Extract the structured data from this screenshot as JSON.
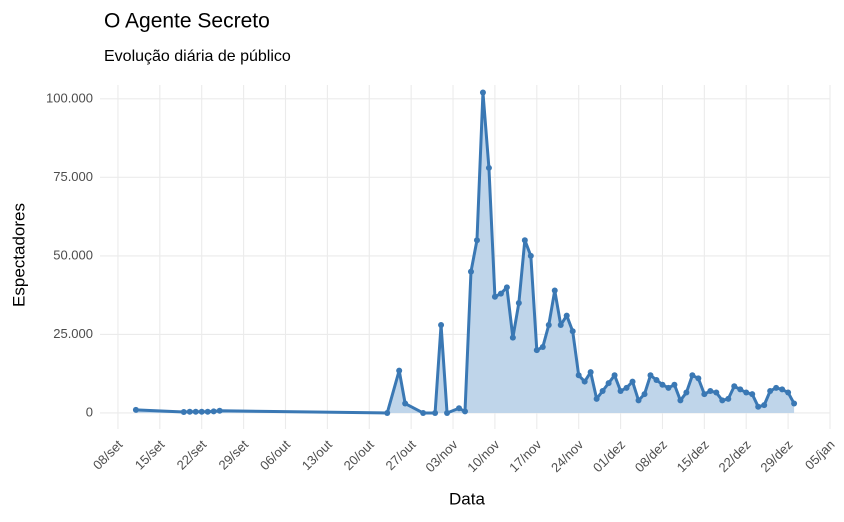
{
  "chart_data": {
    "type": "area-line",
    "title": "O Agente Secreto",
    "subtitle": "Evolução diária de público",
    "x_label": "Data",
    "y_label": "Espectadores",
    "line_color": "#3a78b4",
    "fill_color": "#bfd5ea",
    "grid": true,
    "x": [
      "11/set",
      "19/set",
      "20/set",
      "21/set",
      "22/set",
      "23/set",
      "24/set",
      "25/set",
      "23/out",
      "25/out",
      "26/out",
      "29/out",
      "31/out",
      "01/nov",
      "02/nov",
      "04/nov",
      "05/nov",
      "06/nov",
      "07/nov",
      "08/nov",
      "09/nov",
      "10/nov",
      "11/nov",
      "12/nov",
      "13/nov",
      "14/nov",
      "15/nov",
      "16/nov",
      "17/nov",
      "18/nov",
      "19/nov",
      "20/nov",
      "21/nov",
      "22/nov",
      "23/nov",
      "24/nov",
      "25/nov",
      "26/nov",
      "27/nov",
      "28/nov",
      "29/nov",
      "30/nov",
      "01/dez",
      "02/dez",
      "03/dez",
      "04/dez",
      "05/dez",
      "06/dez",
      "07/dez",
      "08/dez",
      "09/dez",
      "10/dez",
      "11/dez",
      "12/dez",
      "13/dez",
      "14/dez",
      "15/dez",
      "16/dez",
      "17/dez",
      "18/dez",
      "19/dez",
      "20/dez",
      "21/dez",
      "22/dez",
      "23/dez",
      "24/dez",
      "25/dez",
      "26/dez",
      "27/dez",
      "28/dez",
      "29/dez",
      "30/dez"
    ],
    "values": [
      1000,
      300,
      400,
      400,
      400,
      400,
      500,
      700,
      0,
      13500,
      3000,
      0,
      0,
      28000,
      0,
      1500,
      500,
      45000,
      55000,
      102000,
      78000,
      37000,
      38000,
      40000,
      24000,
      35000,
      55000,
      50000,
      20000,
      21000,
      28000,
      39000,
      28000,
      31000,
      26000,
      12000,
      10000,
      13000,
      4500,
      7000,
      9500,
      12000,
      7000,
      8000,
      10000,
      4000,
      6000,
      12000,
      10500,
      9000,
      8000,
      9000,
      4000,
      6500,
      12000,
      11000,
      6000,
      7000,
      6500,
      4000,
      4500,
      8500,
      7500,
      6500,
      6000,
      2000,
      2500,
      7000,
      8000,
      7500,
      6500,
      3000
    ],
    "xlim": [
      "05/set",
      "05/jan"
    ],
    "xticks": [
      "08/set",
      "15/set",
      "22/set",
      "29/set",
      "06/out",
      "13/out",
      "20/out",
      "27/out",
      "03/nov",
      "10/nov",
      "17/nov",
      "24/nov",
      "01/dez",
      "08/dez",
      "15/dez",
      "22/dez",
      "29/dez",
      "05/jan"
    ],
    "ylim": [
      -5100,
      104400
    ],
    "yticks": [
      0,
      {
        "value": 25000,
        "label": "25.000"
      },
      {
        "value": 50000,
        "label": "50.000"
      },
      {
        "value": 75000,
        "label": "75.000"
      },
      {
        "value": 100000,
        "label": "100.000"
      }
    ]
  }
}
